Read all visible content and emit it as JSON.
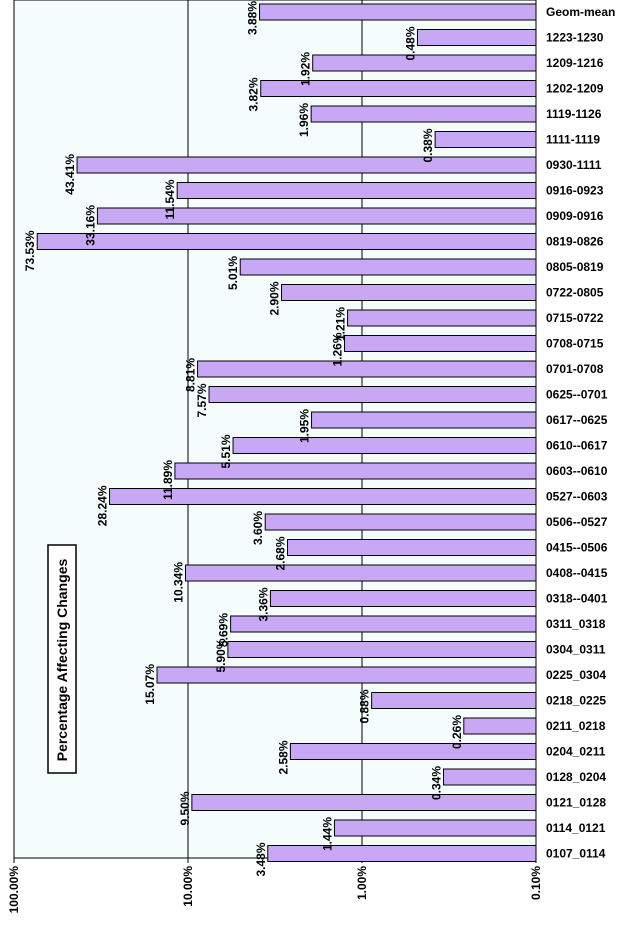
{
  "chart_data": {
    "type": "bar",
    "orientation": "horizontal",
    "title": "Percentage Affecting Changes",
    "xscale": "log",
    "xlim": [
      0.1,
      100
    ],
    "x_ticks": [
      100,
      10,
      1,
      0.1
    ],
    "x_tick_labels": [
      "100.00%",
      "10.00%",
      "1.00%",
      "0.10%"
    ],
    "grid": true,
    "colors": {
      "bar": "#c8a8f4",
      "plot_background": "#f4fcfc"
    },
    "categories": [
      "Geom-mean",
      "1223-1230",
      "1209-1216",
      "1202-1209",
      "1119-1126",
      "1111-1119",
      "0930-1111",
      "0916-0923",
      "0909-0916",
      "0819-0826",
      "0805-0819",
      "0722-0805",
      "0715-0722",
      "0708-0715",
      "0701-0708",
      "0625--0701",
      "0617--0625",
      "0610--0617",
      "0603--0610",
      "0527--0603",
      "0506--0527",
      "0415--0506",
      "0408--0415",
      "0318--0401",
      "0311_0318",
      "0304_0311",
      "0225_0304",
      "0218_0225",
      "0211_0218",
      "0204_0211",
      "0128_0204",
      "0121_0128",
      "0114_0121",
      "0107_0114"
    ],
    "values": [
      3.88,
      0.48,
      1.92,
      3.82,
      1.96,
      0.38,
      43.41,
      11.54,
      33.16,
      73.53,
      5.01,
      2.9,
      1.21,
      1.26,
      8.81,
      7.57,
      1.95,
      5.51,
      11.89,
      28.24,
      3.6,
      2.68,
      10.34,
      3.36,
      5.69,
      5.9,
      15.07,
      0.88,
      0.26,
      2.58,
      0.34,
      9.5,
      1.44,
      3.48
    ],
    "data_labels": [
      "3.88%",
      "0.48%",
      "1.92%",
      "3.82%",
      "1.96%",
      "0.38%",
      "43.41%",
      "11.54%",
      "33.16%",
      "73.53%",
      "5.01%",
      "2.90%",
      "1.21%",
      "1.26%",
      "8.81%",
      "7.57%",
      "1.95%",
      "5.51%",
      "11.89%",
      "28.24%",
      "3.60%",
      "2.68%",
      "10.34%",
      "3.36%",
      "5.69%",
      "5.90%",
      "15.07%",
      "0.88%",
      "0.26%",
      "2.58%",
      "0.34%",
      "9.50%",
      "1.44%",
      "3.48%"
    ]
  }
}
